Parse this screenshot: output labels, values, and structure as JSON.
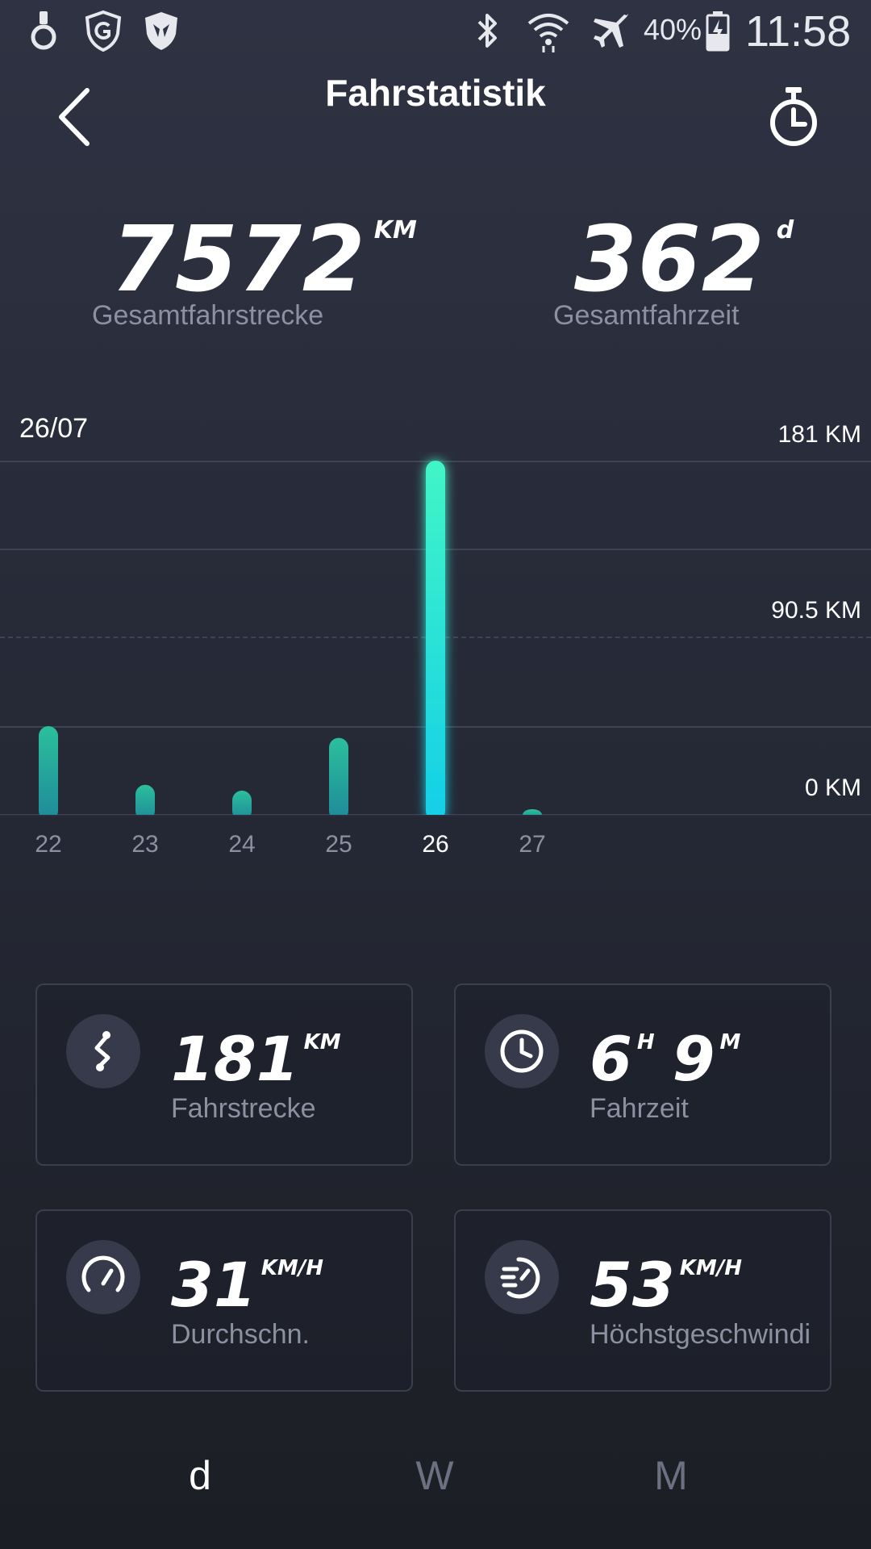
{
  "status_bar": {
    "battery": "40%",
    "time": "11:58"
  },
  "header": {
    "title": "Fahrstatistik"
  },
  "totals": {
    "distance": {
      "value": "7572",
      "unit": "KM",
      "label": "Gesamtfahrstrecke"
    },
    "time": {
      "value": "362",
      "unit": "d",
      "label": "Gesamtfahrzeit"
    }
  },
  "chart": {
    "selected_date": "26/07",
    "y_ticks": [
      "181 KM",
      "90.5 KM",
      "0 KM"
    ]
  },
  "chart_data": {
    "type": "bar",
    "categories": [
      "22",
      "23",
      "24",
      "25",
      "26",
      "27"
    ],
    "values": [
      45,
      15,
      12,
      39,
      181,
      1
    ],
    "ylim": [
      0,
      181
    ],
    "selected_index": 4,
    "colors": {
      "normal": "#1f8a99",
      "normal_top": "#2bbf9c",
      "selected_top": "#41f5c6",
      "selected_bottom": "#13cfe8"
    }
  },
  "stats": [
    {
      "value_parts": [
        {
          "num": "181",
          "unit": "KM"
        }
      ],
      "label": "Fahrstrecke",
      "icon": "route-icon"
    },
    {
      "value_parts": [
        {
          "num": "6",
          "unit": "H"
        },
        {
          "num": "9",
          "unit": "M"
        }
      ],
      "label": "Fahrzeit",
      "icon": "clock-icon"
    },
    {
      "value_parts": [
        {
          "num": "31",
          "unit": "KM/H"
        }
      ],
      "label": "Durchschn.",
      "icon": "speedometer-icon"
    },
    {
      "value_parts": [
        {
          "num": "53",
          "unit": "KM/H"
        }
      ],
      "label": "Höchstgeschwindi",
      "icon": "top-speed-icon"
    }
  ],
  "tabs": [
    {
      "label": "d",
      "active": true
    },
    {
      "label": "W",
      "active": false
    },
    {
      "label": "M",
      "active": false
    }
  ]
}
